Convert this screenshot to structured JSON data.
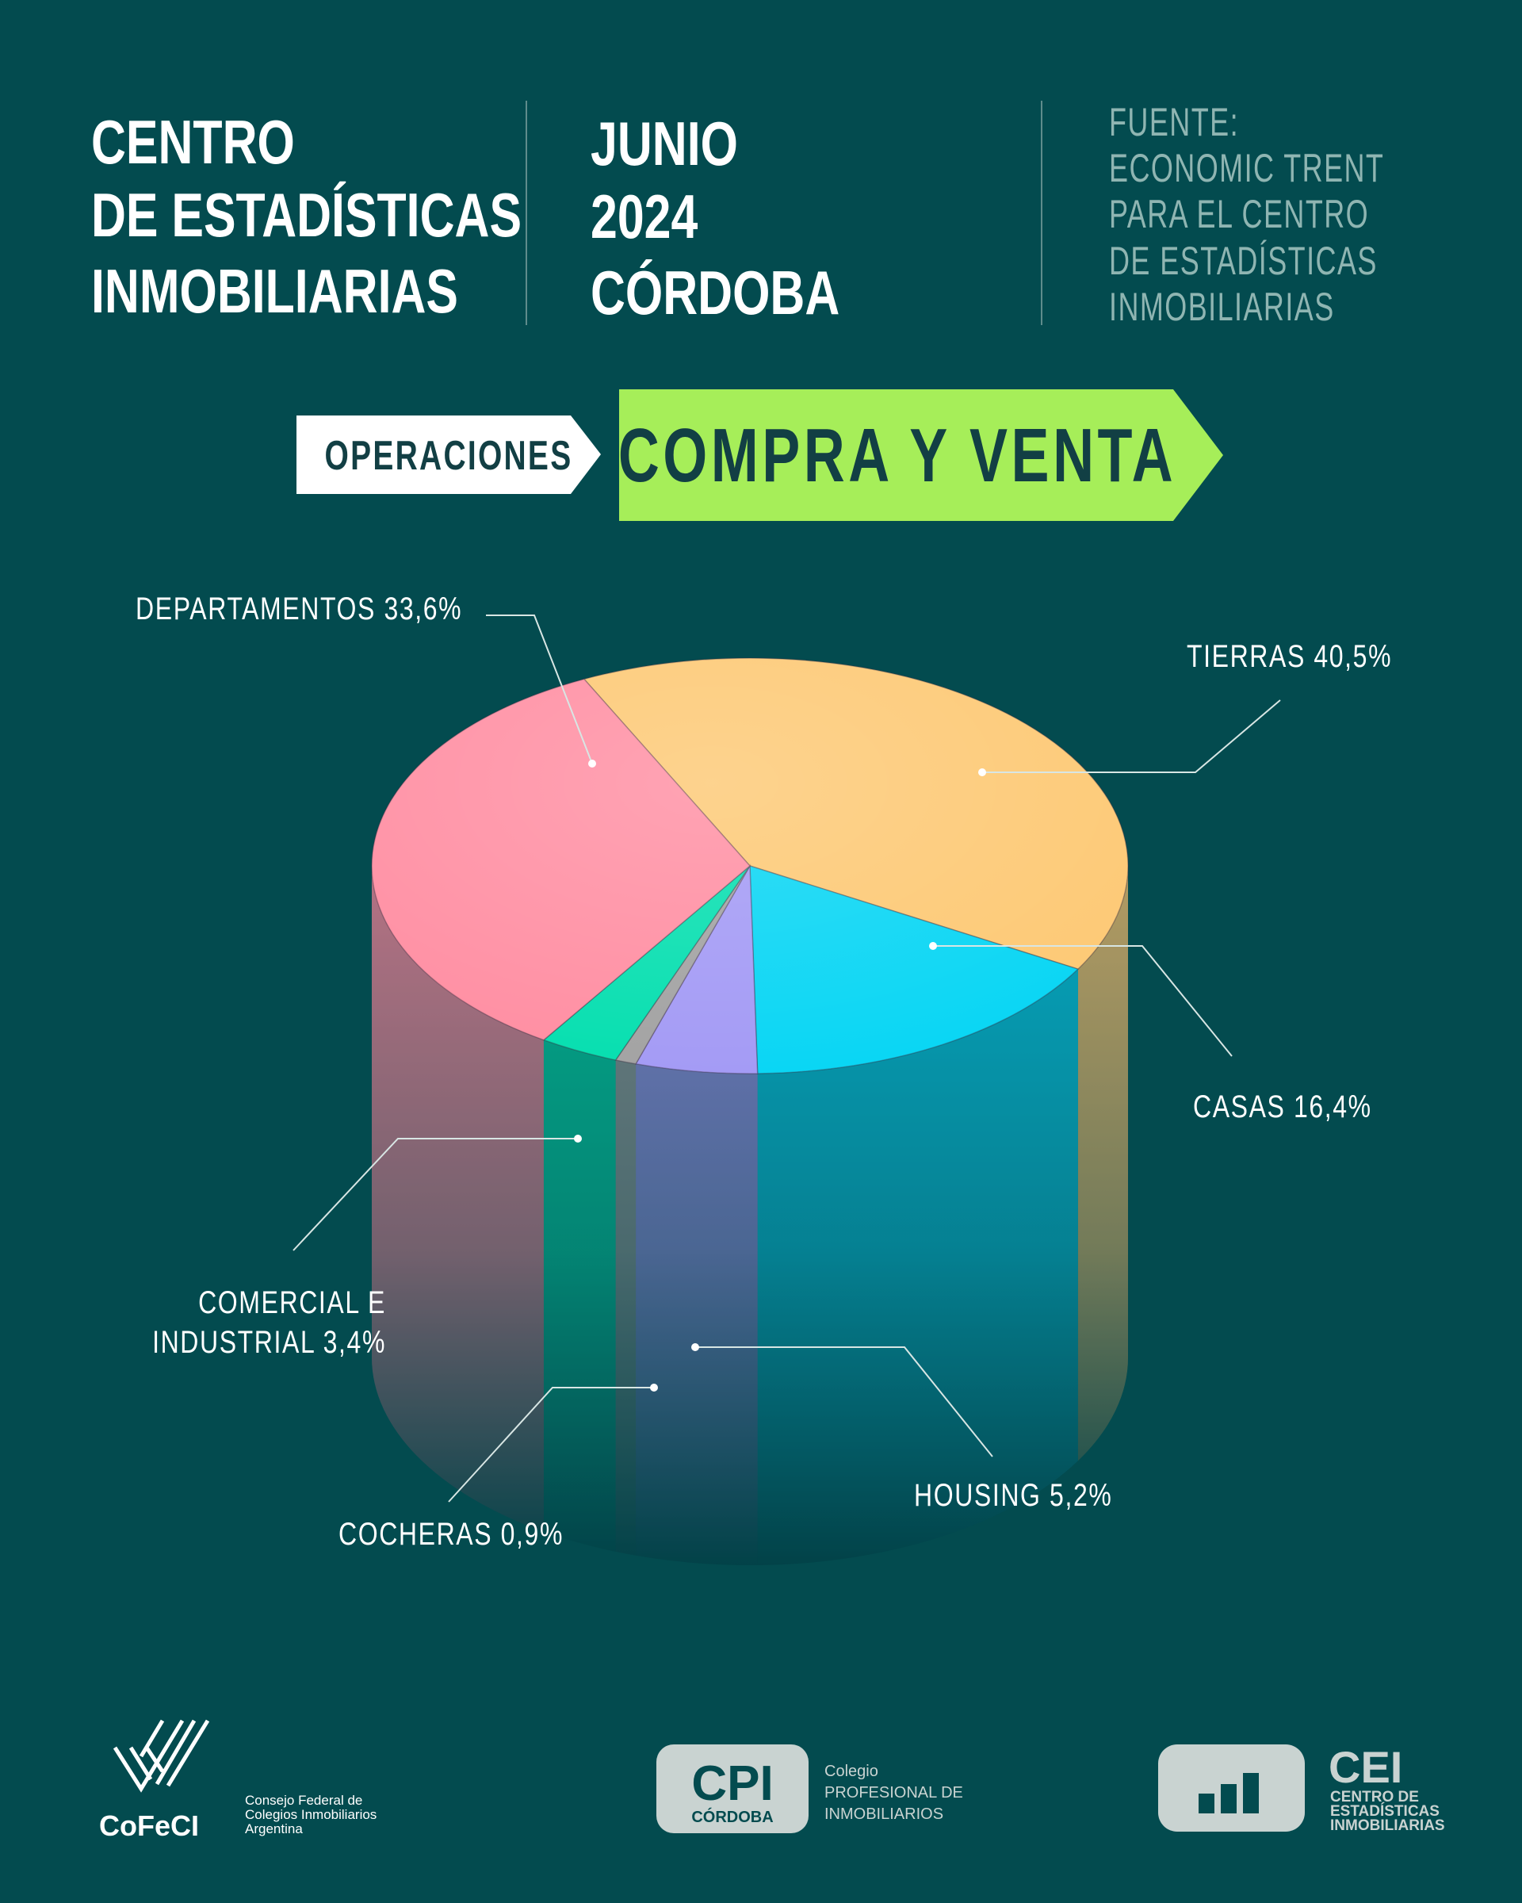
{
  "header": {
    "title_lines": [
      "CENTRO",
      "DE ESTADÍSTICAS",
      "INMOBILIARIAS"
    ],
    "date_lines": [
      "JUNIO",
      "2024",
      "CÓRDOBA"
    ],
    "source_lines": [
      "FUENTE:",
      "ECONOMIC TRENT",
      "PARA EL CENTRO",
      "DE ESTADÍSTICAS",
      "INMOBILIARIAS"
    ]
  },
  "tabs": {
    "operation_label": "OPERACIONES"
  },
  "chart_data": {
    "type": "pie",
    "title": "COMPRA Y VENTA",
    "categories": [
      "TIERRAS",
      "CASAS",
      "HOUSING",
      "COCHERAS",
      "COMERCIAL E INDUSTRIAL",
      "DEPARTAMENTOS"
    ],
    "values": [
      40.5,
      16.4,
      5.2,
      0.9,
      3.4,
      33.6
    ],
    "value_labels": [
      "40,5%",
      "16,4%",
      "5,2%",
      "0,9%",
      "3,4%",
      "33,6%"
    ],
    "colors": [
      "#fdc975",
      "#0ad6f4",
      "#a49bf5",
      "#a3a3a3",
      "#07dfb0",
      "#ff8fa3"
    ]
  },
  "footer": {
    "cofeci": {
      "logo": "CoFeCI",
      "lines": [
        "Consejo Federal de",
        "Colegios Inmobiliarios",
        "Argentina"
      ]
    },
    "cpi": {
      "logo": "CPI",
      "logo_sub": "CÓRDOBA",
      "lines": [
        "Colegio",
        "PROFESIONAL DE",
        "INMOBILIARIOS"
      ]
    },
    "cei": {
      "logo": "CEI",
      "lines": [
        "CENTRO DE",
        "ESTADÍSTICAS",
        "INMOBILIARIAS"
      ]
    }
  }
}
